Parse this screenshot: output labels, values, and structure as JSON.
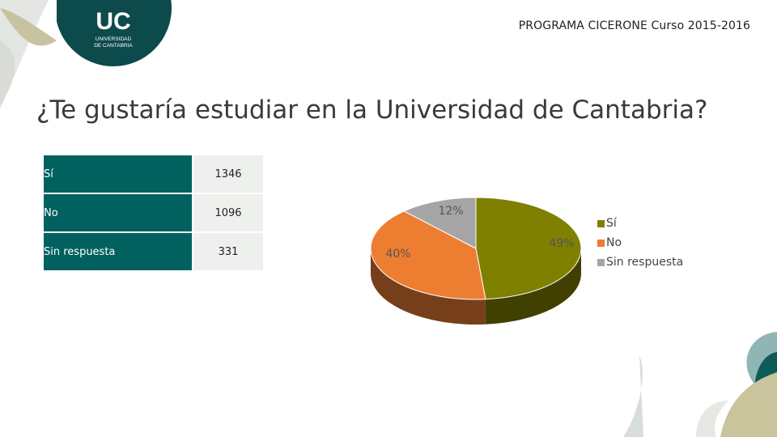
{
  "header": {
    "program": "PROGRAMA CICERONE   Curso 2015-2016"
  },
  "logo": {
    "initials": "UC",
    "line1": "UNIVERSIDAD",
    "line2": "DE CANTABRIA"
  },
  "slide_title": "¿Te gustaría estudiar en la Universidad de Cantabria?",
  "table": {
    "rows": [
      {
        "label": "Sí",
        "value": "1346"
      },
      {
        "label": "No",
        "value": "1096"
      },
      {
        "label": "Sin respuesta",
        "value": "331"
      }
    ]
  },
  "chart_data": {
    "type": "pie",
    "categories": [
      "Sí",
      "No",
      "Sin respuesta"
    ],
    "values": [
      1346,
      1096,
      331
    ],
    "percent_labels": [
      "49%",
      "40%",
      "12%"
    ],
    "colors": [
      "#7f8000",
      "#ed7d31",
      "#a5a5a5"
    ],
    "legend_position": "right"
  },
  "theme": {
    "teal": "#00615e",
    "teal_dark": "#0d4a4b"
  }
}
